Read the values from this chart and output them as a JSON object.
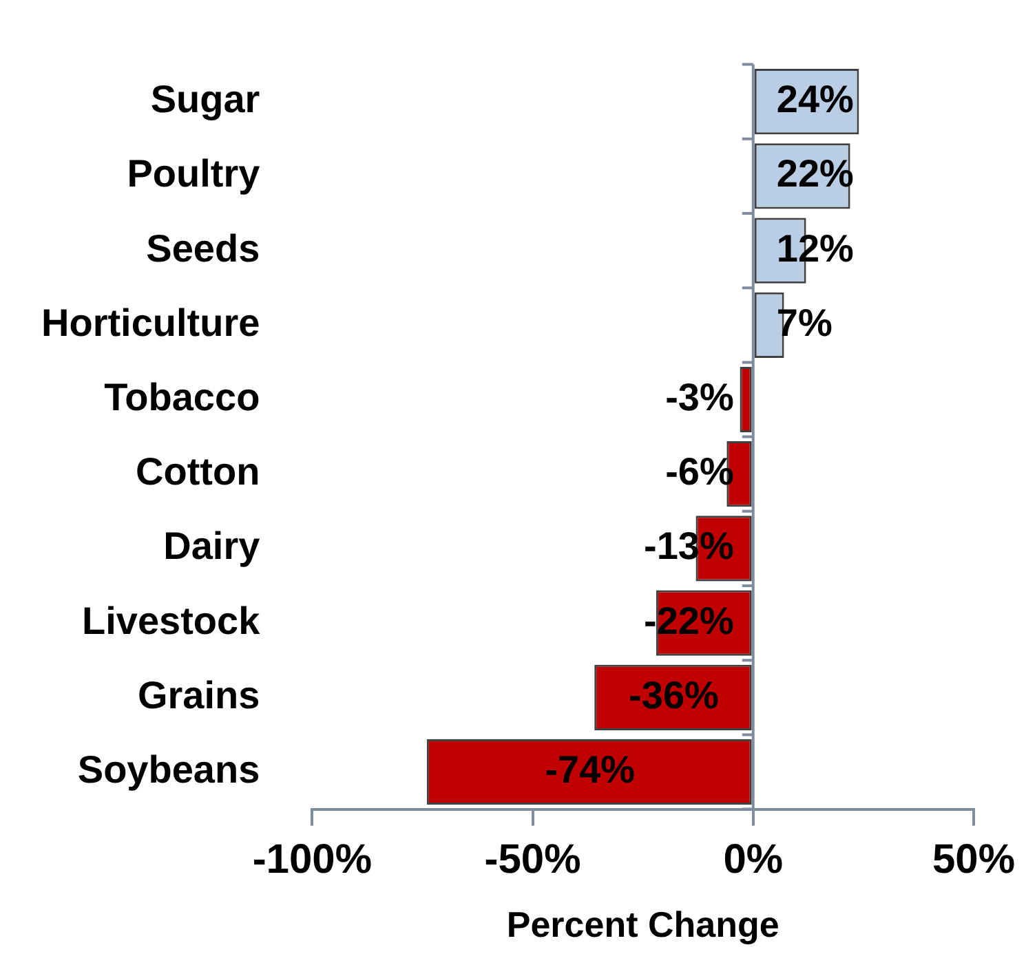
{
  "chart_data": {
    "type": "bar",
    "orientation": "horizontal",
    "xlabel": "Percent Change",
    "categories": [
      "Sugar",
      "Poultry",
      "Seeds",
      "Horticulture",
      "Tobacco",
      "Cotton",
      "Dairy",
      "Livestock",
      "Grains",
      "Soybeans"
    ],
    "values": [
      24,
      22,
      12,
      7,
      -3,
      -6,
      -13,
      -22,
      -36,
      -74
    ],
    "colors": [
      "#b9cde5",
      "#b9cde5",
      "#b9cde5",
      "#b9cde5",
      "#c00000",
      "#c00000",
      "#c00000",
      "#c00000",
      "#c00000",
      "#c00000"
    ],
    "value_labels": [
      "24%",
      "22%",
      "12%",
      "7%",
      "-3%",
      "-6%",
      "-13%",
      "-22%",
      "-36%",
      "-74%"
    ],
    "xlim": [
      -100,
      50
    ],
    "xticks": [
      {
        "value": -100,
        "label": "-100%"
      },
      {
        "value": -50,
        "label": "-50%"
      },
      {
        "value": 0,
        "label": "0%"
      },
      {
        "value": 50,
        "label": "50%"
      }
    ],
    "legend": false
  }
}
